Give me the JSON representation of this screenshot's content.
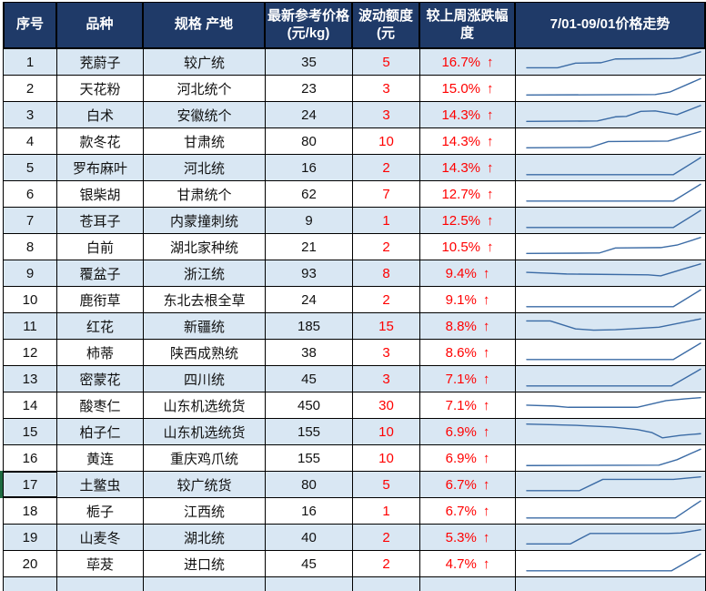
{
  "colors": {
    "header_bg": "#1f3a68",
    "header_text": "#ffffff",
    "row_band": "#d9e7f3",
    "grid_line": "#000000",
    "accent_red": "#ff0000",
    "sparkline_blue": "#3b6ba5",
    "selection_green": "#1d6b40"
  },
  "header": {
    "col_no": "序号",
    "col_name": "品种",
    "col_spec": "规格 产地",
    "col_price_line1": "最新参考价格",
    "col_price_line2": "(元/kg)",
    "col_delta_line1": "波动额度",
    "col_delta_line2": "(元",
    "col_pct": "较上周涨跌幅度",
    "col_trend": "7/01-09/01价格走势"
  },
  "selection": {
    "row_no": "17"
  },
  "rows": [
    {
      "no": "1",
      "name": "茺蔚子",
      "spec": "较广统",
      "price": "35",
      "delta": "5",
      "pct": "16.7%",
      "arrow": "↑",
      "trend": [
        [
          3,
          80
        ],
        [
          20,
          80
        ],
        [
          30,
          58
        ],
        [
          44,
          56
        ],
        [
          52,
          38
        ],
        [
          84,
          36
        ],
        [
          88,
          33
        ],
        [
          99,
          4
        ]
      ]
    },
    {
      "no": "2",
      "name": "天花粉",
      "spec": "河北统个",
      "price": "23",
      "delta": "3",
      "pct": "15.0%",
      "arrow": "↑",
      "trend": [
        [
          3,
          84
        ],
        [
          74,
          82
        ],
        [
          82,
          70
        ],
        [
          99,
          6
        ]
      ]
    },
    {
      "no": "3",
      "name": "白术",
      "spec": "安徽统个",
      "price": "24",
      "delta": "3",
      "pct": "14.3%",
      "arrow": "↑",
      "trend": [
        [
          3,
          84
        ],
        [
          42,
          82
        ],
        [
          52,
          62
        ],
        [
          58,
          60
        ],
        [
          66,
          36
        ],
        [
          74,
          34
        ],
        [
          86,
          52
        ],
        [
          99,
          8
        ]
      ]
    },
    {
      "no": "4",
      "name": "款冬花",
      "spec": "甘肃统",
      "price": "80",
      "delta": "10",
      "pct": "14.3%",
      "arrow": "↑",
      "trend": [
        [
          3,
          84
        ],
        [
          38,
          82
        ],
        [
          48,
          54
        ],
        [
          81,
          52
        ],
        [
          99,
          6
        ]
      ]
    },
    {
      "no": "5",
      "name": "罗布麻叶",
      "spec": "河北统",
      "price": "16",
      "delta": "2",
      "pct": "14.3%",
      "arrow": "↑",
      "trend": [
        [
          3,
          86
        ],
        [
          84,
          86
        ],
        [
          99,
          5
        ]
      ]
    },
    {
      "no": "6",
      "name": "银柴胡",
      "spec": "甘肃统个",
      "price": "62",
      "delta": "7",
      "pct": "12.7%",
      "arrow": "↑",
      "trend": [
        [
          3,
          86
        ],
        [
          84,
          86
        ],
        [
          99,
          6
        ]
      ]
    },
    {
      "no": "7",
      "name": "苍耳子",
      "spec": "内蒙撞刺统",
      "price": "9",
      "delta": "1",
      "pct": "12.5%",
      "arrow": "↑",
      "trend": [
        [
          3,
          86
        ],
        [
          84,
          86
        ],
        [
          99,
          5
        ]
      ]
    },
    {
      "no": "8",
      "name": "白前",
      "spec": "湖北家种统",
      "price": "21",
      "delta": "2",
      "pct": "10.5%",
      "arrow": "↑",
      "trend": [
        [
          3,
          84
        ],
        [
          43,
          82
        ],
        [
          52,
          58
        ],
        [
          77,
          56
        ],
        [
          86,
          44
        ],
        [
          99,
          8
        ]
      ]
    },
    {
      "no": "9",
      "name": "覆盆子",
      "spec": "浙江统",
      "price": "93",
      "delta": "8",
      "pct": "9.4%",
      "arrow": "↑",
      "trend": [
        [
          3,
          48
        ],
        [
          25,
          56
        ],
        [
          70,
          60
        ],
        [
          77,
          65
        ],
        [
          88,
          36
        ],
        [
          99,
          8
        ]
      ]
    },
    {
      "no": "10",
      "name": "鹿衔草",
      "spec": "东北去根全草",
      "price": "24",
      "delta": "2",
      "pct": "9.1%",
      "arrow": "↑",
      "trend": [
        [
          3,
          86
        ],
        [
          84,
          86
        ],
        [
          99,
          6
        ]
      ]
    },
    {
      "no": "11",
      "name": "红花",
      "spec": "新疆统",
      "price": "185",
      "delta": "15",
      "pct": "8.8%",
      "arrow": "↑",
      "trend": [
        [
          3,
          28
        ],
        [
          16,
          28
        ],
        [
          30,
          66
        ],
        [
          40,
          72
        ],
        [
          52,
          70
        ],
        [
          76,
          58
        ],
        [
          99,
          18
        ]
      ]
    },
    {
      "no": "12",
      "name": "柿蒂",
      "spec": "陕西成熟统",
      "price": "38",
      "delta": "3",
      "pct": "8.6%",
      "arrow": "↑",
      "trend": [
        [
          3,
          86
        ],
        [
          84,
          86
        ],
        [
          99,
          8
        ]
      ]
    },
    {
      "no": "13",
      "name": "密蒙花",
      "spec": "四川统",
      "price": "45",
      "delta": "3",
      "pct": "7.1%",
      "arrow": "↑",
      "trend": [
        [
          3,
          86
        ],
        [
          83,
          86
        ],
        [
          99,
          6
        ]
      ]
    },
    {
      "no": "14",
      "name": "酸枣仁",
      "spec": "山东机选统货",
      "price": "450",
      "delta": "30",
      "pct": "7.1%",
      "arrow": "↑",
      "trend": [
        [
          3,
          52
        ],
        [
          18,
          56
        ],
        [
          26,
          62
        ],
        [
          64,
          62
        ],
        [
          80,
          30
        ],
        [
          90,
          22
        ],
        [
          99,
          16
        ]
      ]
    },
    {
      "no": "15",
      "name": "柏子仁",
      "spec": "山东机选统货",
      "price": "155",
      "delta": "10",
      "pct": "6.9%",
      "arrow": "↑",
      "trend": [
        [
          3,
          16
        ],
        [
          30,
          22
        ],
        [
          50,
          30
        ],
        [
          64,
          42
        ],
        [
          72,
          56
        ],
        [
          78,
          82
        ],
        [
          88,
          70
        ],
        [
          99,
          62
        ]
      ]
    },
    {
      "no": "16",
      "name": "黄连",
      "spec": "重庆鸡爪统",
      "price": "155",
      "delta": "10",
      "pct": "6.9%",
      "arrow": "↑",
      "trend": [
        [
          3,
          88
        ],
        [
          76,
          86
        ],
        [
          86,
          60
        ],
        [
          99,
          10
        ]
      ]
    },
    {
      "no": "17",
      "name": "土鳖虫",
      "spec": "较广统货",
      "price": "80",
      "delta": "5",
      "pct": "6.7%",
      "arrow": "↑",
      "trend": [
        [
          3,
          82
        ],
        [
          32,
          82
        ],
        [
          45,
          28
        ],
        [
          84,
          28
        ],
        [
          99,
          16
        ]
      ]
    },
    {
      "no": "18",
      "name": "栀子",
      "spec": "江西统",
      "price": "16",
      "delta": "1",
      "pct": "6.7%",
      "arrow": "↑",
      "trend": [
        [
          3,
          86
        ],
        [
          85,
          86
        ],
        [
          99,
          5
        ]
      ]
    },
    {
      "no": "19",
      "name": "山麦冬",
      "spec": "湖北统",
      "price": "40",
      "delta": "2",
      "pct": "5.3%",
      "arrow": "↑",
      "trend": [
        [
          3,
          84
        ],
        [
          27,
          84
        ],
        [
          38,
          34
        ],
        [
          81,
          34
        ],
        [
          88,
          32
        ],
        [
          99,
          16
        ]
      ]
    },
    {
      "no": "20",
      "name": "荜茇",
      "spec": "进口统",
      "price": "45",
      "delta": "2",
      "pct": "4.7%",
      "arrow": "↑",
      "trend": [
        [
          3,
          86
        ],
        [
          83,
          86
        ],
        [
          99,
          6
        ]
      ]
    }
  ]
}
